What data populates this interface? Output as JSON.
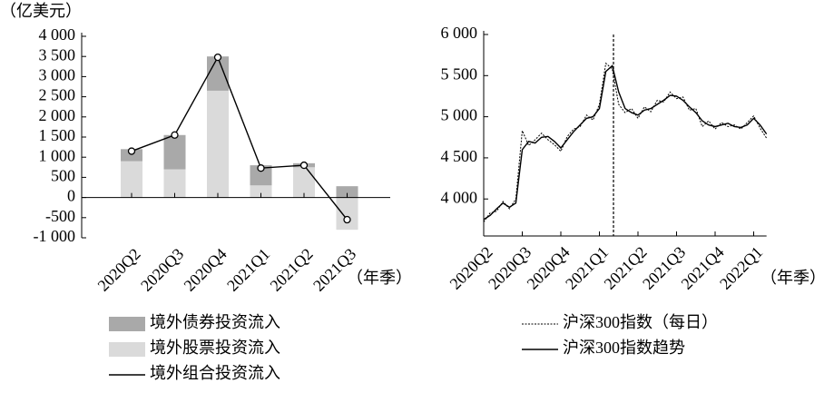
{
  "chart_data": [
    {
      "type": "bar",
      "stacked": true,
      "y_label": "（亿美元）",
      "x_label": "（年季）",
      "categories": [
        "2020Q2",
        "2020Q3",
        "2020Q4",
        "2021Q1",
        "2021Q2",
        "2021Q3"
      ],
      "series": [
        {
          "name": "境外债券投资流入",
          "type": "bar",
          "color": "#a9a9a9",
          "values": [
            300,
            850,
            850,
            500,
            100,
            280
          ]
        },
        {
          "name": "境外股票投资流入",
          "type": "bar",
          "color": "#dadada",
          "values": [
            900,
            700,
            2650,
            300,
            750,
            -800
          ]
        },
        {
          "name": "境外组合投资流入",
          "type": "line",
          "color": "#000000",
          "values": [
            1150,
            1550,
            3480,
            730,
            800,
            -550
          ]
        }
      ],
      "ylim": [
        -1000,
        4000
      ],
      "yticks": [
        {
          "value": -1000,
          "label": "-1 000"
        },
        -500,
        0,
        500,
        {
          "value": 1000,
          "label": "1 000"
        },
        {
          "value": 1500,
          "label": "1 500"
        },
        {
          "value": 2000,
          "label": "2 000"
        },
        {
          "value": 2500,
          "label": "2 500"
        },
        {
          "value": 3000,
          "label": "3 000"
        },
        {
          "value": 3500,
          "label": "3 500"
        },
        {
          "value": 4000,
          "label": "4 000"
        }
      ]
    },
    {
      "type": "line",
      "x_label": "（年季）",
      "categories": [
        "2020Q2",
        null,
        null,
        null,
        null,
        null,
        "2020Q3",
        null,
        null,
        null,
        null,
        null,
        "2020Q4",
        null,
        null,
        null,
        null,
        null,
        "2021Q1",
        null,
        null,
        null,
        null,
        null,
        "2021Q2",
        null,
        null,
        null,
        null,
        null,
        "2021Q3",
        null,
        null,
        null,
        null,
        null,
        "2021Q4",
        null,
        null,
        null,
        null,
        null,
        "2022Q1",
        null,
        null
      ],
      "series": [
        {
          "name": "沪深300指数（每日）",
          "color": "#000000",
          "dash": true,
          "values": [
            3720,
            3830,
            3850,
            3970,
            3880,
            4000,
            4830,
            4650,
            4720,
            4800,
            4720,
            4660,
            4580,
            4760,
            4850,
            4880,
            5020,
            4960,
            5150,
            5650,
            5580,
            5150,
            5050,
            5100,
            4980,
            5120,
            5060,
            5200,
            5180,
            5300,
            5220,
            5240,
            5080,
            5100,
            4880,
            4950,
            4850,
            4930,
            4880,
            4900,
            4850,
            4930,
            5010,
            4860,
            4740
          ]
        },
        {
          "name": "沪深300指数趋势",
          "color": "#000000",
          "dash": false,
          "values": [
            3750,
            3800,
            3880,
            3950,
            3900,
            3950,
            4600,
            4700,
            4680,
            4750,
            4760,
            4700,
            4620,
            4720,
            4820,
            4900,
            4980,
            5000,
            5100,
            5550,
            5620,
            5300,
            5100,
            5050,
            5020,
            5080,
            5100,
            5150,
            5200,
            5260,
            5250,
            5200,
            5120,
            5050,
            4950,
            4900,
            4880,
            4900,
            4920,
            4880,
            4870,
            4900,
            4980,
            4900,
            4790
          ]
        }
      ],
      "ylim": [
        3550,
        6000
      ],
      "yticks": [
        {
          "value": 4000,
          "label": "4 000"
        },
        {
          "value": 4500,
          "label": "4 500"
        },
        {
          "value": 5000,
          "label": "5 000"
        },
        {
          "value": 5500,
          "label": "5 500"
        },
        {
          "value": 6000,
          "label": "6 000"
        }
      ]
    }
  ]
}
